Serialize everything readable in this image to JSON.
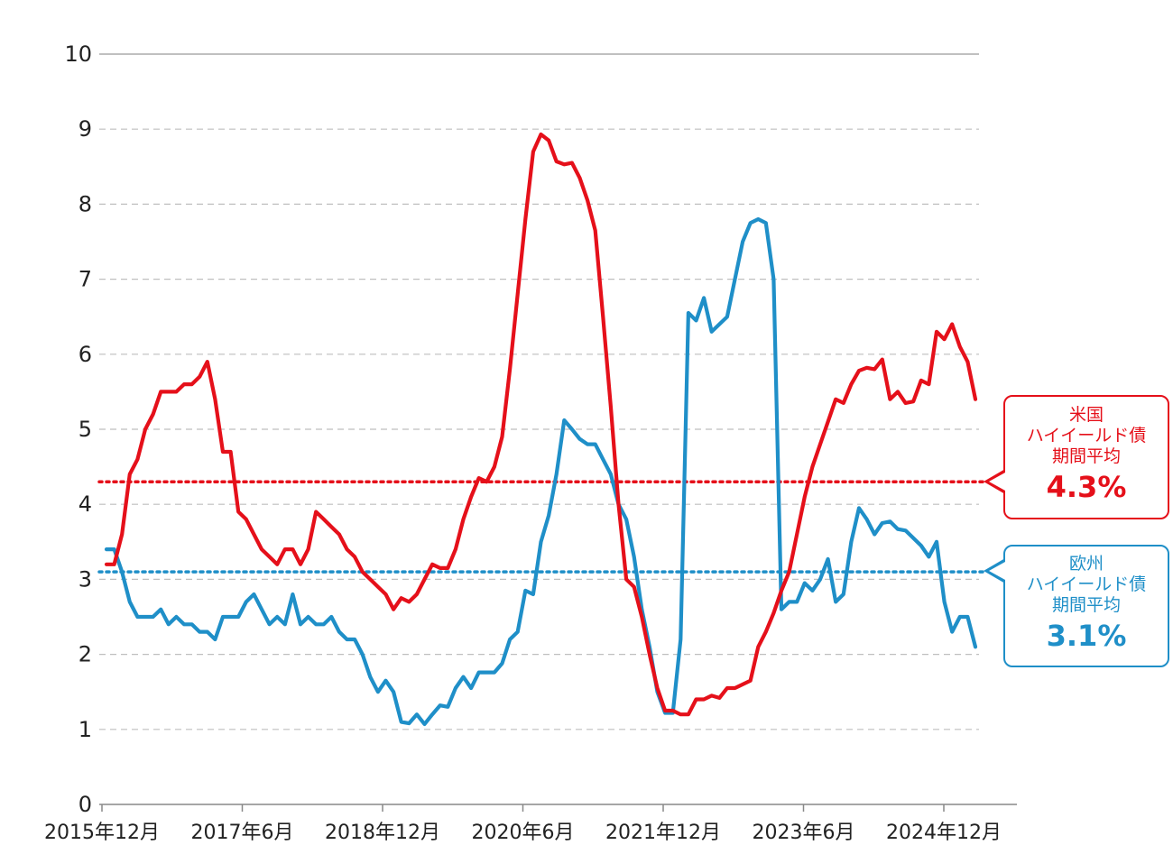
{
  "colors": {
    "us": "#e5101a",
    "eu": "#1f8fc8",
    "grid": "#bfbfbf",
    "axis": "#888888"
  },
  "chart_data": {
    "type": "line",
    "title": "",
    "xlabel": "",
    "ylabel": "",
    "ylim": [
      0,
      10
    ],
    "y_ticks": [
      "0",
      "1",
      "2",
      "3",
      "4",
      "5",
      "6",
      "7",
      "8",
      "9",
      "10"
    ],
    "x_tick_labels": [
      "2015年12月",
      "2017年6月",
      "2018年12月",
      "2020年6月",
      "2021年12月",
      "2023年6月",
      "2024年12月"
    ],
    "x_start": "2015-12",
    "x_end": "2025-06",
    "grid": true,
    "series": [
      {
        "name": "米国ハイイールド債",
        "color": "#e5101a",
        "values": [
          3.2,
          3.2,
          3.6,
          4.4,
          4.6,
          5.0,
          5.2,
          5.5,
          5.5,
          5.5,
          5.6,
          5.6,
          5.7,
          5.9,
          5.4,
          4.7,
          4.7,
          3.9,
          3.8,
          3.6,
          3.4,
          3.3,
          3.2,
          3.4,
          3.4,
          3.2,
          3.4,
          3.9,
          3.8,
          3.7,
          3.6,
          3.4,
          3.3,
          3.1,
          3.0,
          2.9,
          2.8,
          2.6,
          2.75,
          2.7,
          2.8,
          3.0,
          3.2,
          3.15,
          3.15,
          3.4,
          3.8,
          4.1,
          4.35,
          4.3,
          4.5,
          4.9,
          5.8,
          6.8,
          7.8,
          8.7,
          8.93,
          8.85,
          8.57,
          8.53,
          8.55,
          8.35,
          8.05,
          7.65,
          6.5,
          5.3,
          4.0,
          3.0,
          2.9,
          2.5,
          2.0,
          1.55,
          1.25,
          1.25,
          1.2,
          1.2,
          1.4,
          1.4,
          1.45,
          1.42,
          1.55,
          1.55,
          1.6,
          1.65,
          2.1,
          2.3,
          2.55,
          2.85,
          3.1,
          3.6,
          4.1,
          4.5,
          4.8,
          5.1,
          5.4,
          5.35,
          5.6,
          5.78,
          5.82,
          5.8,
          5.93,
          5.4,
          5.5,
          5.35,
          5.37,
          5.65,
          5.6,
          6.3,
          6.2,
          6.4,
          6.1,
          5.9,
          5.4
        ]
      },
      {
        "name": "欧州ハイイールド債",
        "color": "#1f8fc8",
        "values": [
          3.4,
          3.4,
          3.1,
          2.7,
          2.5,
          2.5,
          2.5,
          2.6,
          2.4,
          2.5,
          2.4,
          2.4,
          2.3,
          2.3,
          2.2,
          2.5,
          2.5,
          2.5,
          2.7,
          2.8,
          2.6,
          2.4,
          2.5,
          2.4,
          2.8,
          2.4,
          2.5,
          2.4,
          2.4,
          2.5,
          2.3,
          2.2,
          2.2,
          2.0,
          1.7,
          1.5,
          1.65,
          1.5,
          1.1,
          1.08,
          1.2,
          1.07,
          1.2,
          1.32,
          1.3,
          1.55,
          1.7,
          1.55,
          1.76,
          1.76,
          1.76,
          1.88,
          2.2,
          2.3,
          2.85,
          2.8,
          3.5,
          3.85,
          4.4,
          5.12,
          5.0,
          4.87,
          4.8,
          4.8,
          4.6,
          4.4,
          4.0,
          3.8,
          3.3,
          2.6,
          2.1,
          1.5,
          1.22,
          1.22,
          2.2,
          6.55,
          6.45,
          6.75,
          6.3,
          6.4,
          6.5,
          7.0,
          7.5,
          7.75,
          7.8,
          7.75,
          7.0,
          2.6,
          2.7,
          2.7,
          2.95,
          2.85,
          3.0,
          3.27,
          2.7,
          2.8,
          3.5,
          3.95,
          3.8,
          3.6,
          3.75,
          3.77,
          3.67,
          3.65,
          3.55,
          3.45,
          3.3,
          3.5,
          2.7,
          2.3,
          2.5,
          2.5,
          2.1
        ]
      }
    ],
    "reference_lines": [
      {
        "name": "米国",
        "value": 4.3,
        "color": "#e5101a",
        "style": "dotted"
      },
      {
        "name": "欧州",
        "value": 3.1,
        "color": "#1f8fc8",
        "style": "dotted"
      }
    ]
  },
  "callouts": {
    "us": {
      "line1": "米国",
      "line2": "ハイイールド債",
      "line3": "期間平均",
      "value": "4.3%"
    },
    "eu": {
      "line1": "欧州",
      "line2": "ハイイールド債",
      "line3": "期間平均",
      "value": "3.1%"
    }
  }
}
